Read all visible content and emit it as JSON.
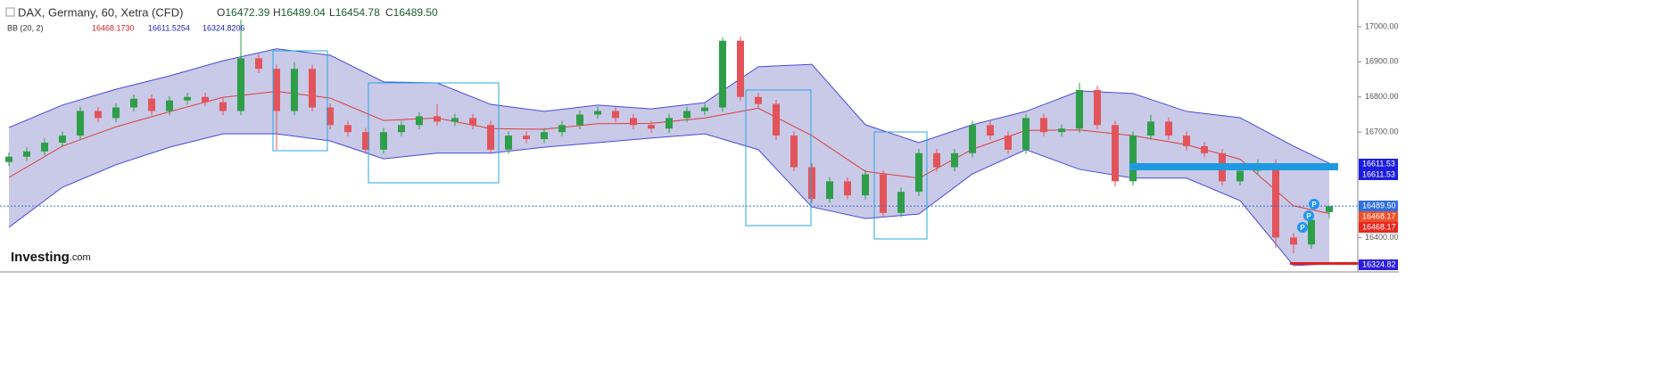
{
  "header": {
    "title": "DAX, Germany, 60, Xetra (CFD)",
    "ohlc": [
      {
        "label": "O",
        "value": "16472.39"
      },
      {
        "label": "H",
        "value": "16489.04"
      },
      {
        "label": "L",
        "value": "16454.78"
      },
      {
        "label": "C",
        "value": "16489.50"
      }
    ]
  },
  "bb_legend": {
    "label": "BB (20, 2)",
    "values": [
      "16468.1730",
      "16611.5254",
      "16324.8206"
    ]
  },
  "logo": [
    "Investing",
    ".com"
  ],
  "markers": [
    "P",
    "P",
    "P"
  ],
  "chart_data": {
    "type": "candlestick",
    "up_color": "#2e9e48",
    "down_color": "#e2545a",
    "open": [
      16615,
      16630,
      16645,
      16670,
      16690,
      16760,
      16740,
      16770,
      16795,
      16760,
      16790,
      16800,
      16785,
      16760,
      16910,
      16880,
      16760,
      16880,
      16770,
      16720,
      16700,
      16650,
      16700,
      16720,
      16745,
      16730,
      16740,
      16720,
      16650,
      16690,
      16680,
      16700,
      16720,
      16750,
      16760,
      16740,
      16720,
      16710,
      16740,
      16760,
      16770,
      16960,
      16800,
      16780,
      16690,
      16600,
      16510,
      16560,
      16520,
      16580,
      16470,
      16530,
      16640,
      16600,
      16640,
      16720,
      16690,
      16650,
      16740,
      16700,
      16710,
      16820,
      16720,
      16560,
      16690,
      16730,
      16690,
      16660,
      16640,
      16560,
      16590,
      16610,
      16400,
      16380,
      16472.39
    ],
    "high": [
      16642,
      16657,
      16682,
      16702,
      16772,
      16772,
      16782,
      16807,
      16807,
      16802,
      16812,
      16812,
      16797,
      17020,
      16922,
      16892,
      16900,
      16892,
      16782,
      16732,
      16712,
      16712,
      16732,
      16757,
      16780,
      16752,
      16752,
      16732,
      16702,
      16702,
      16712,
      16732,
      16762,
      16772,
      16772,
      16752,
      16732,
      16752,
      16772,
      16782,
      16970,
      16972,
      16812,
      16792,
      16702,
      16612,
      16572,
      16572,
      16592,
      16592,
      16542,
      16652,
      16652,
      16652,
      16732,
      16732,
      16702,
      16752,
      16752,
      16722,
      16840,
      16832,
      16732,
      16702,
      16750,
      16742,
      16702,
      16672,
      16652,
      16602,
      16622,
      16622,
      16412,
      16462,
      16489.04
    ],
    "low": [
      16603,
      16618,
      16633,
      16658,
      16678,
      16728,
      16728,
      16758,
      16748,
      16748,
      16778,
      16773,
      16748,
      16748,
      16868,
      16650,
      16748,
      16758,
      16708,
      16688,
      16638,
      16638,
      16688,
      16708,
      16718,
      16718,
      16708,
      16638,
      16638,
      16668,
      16668,
      16688,
      16708,
      16738,
      16728,
      16708,
      16698,
      16698,
      16728,
      16748,
      16758,
      16788,
      16768,
      16678,
      16588,
      16498,
      16498,
      16508,
      16508,
      16458,
      16458,
      16518,
      16588,
      16588,
      16628,
      16678,
      16638,
      16638,
      16688,
      16688,
      16698,
      16708,
      16545,
      16548,
      16678,
      16678,
      16648,
      16628,
      16548,
      16548,
      16578,
      16370,
      16355,
      16368,
      16454.78
    ],
    "close": [
      16630,
      16645,
      16670,
      16690,
      16760,
      16740,
      16770,
      16795,
      16760,
      16790,
      16800,
      16785,
      16760,
      16910,
      16880,
      16760,
      16880,
      16770,
      16720,
      16700,
      16650,
      16700,
      16720,
      16745,
      16730,
      16740,
      16720,
      16650,
      16690,
      16680,
      16700,
      16720,
      16750,
      16760,
      16740,
      16720,
      16710,
      16740,
      16760,
      16770,
      16960,
      16800,
      16780,
      16690,
      16600,
      16510,
      16560,
      16520,
      16580,
      16470,
      16530,
      16640,
      16600,
      16640,
      16720,
      16690,
      16650,
      16740,
      16700,
      16710,
      16820,
      16720,
      16560,
      16690,
      16730,
      16690,
      16660,
      16640,
      16560,
      16590,
      16610,
      16400,
      16380,
      16450,
      16489.5
    ],
    "bands": {
      "x": [
        0,
        3,
        6,
        9,
        12,
        15,
        18,
        21,
        24,
        27,
        30,
        33,
        36,
        39,
        42,
        45,
        48,
        51,
        54,
        57,
        60,
        63,
        66,
        69,
        72,
        74
      ],
      "upper": [
        16713,
        16777,
        16822,
        16860,
        16903,
        16937,
        16919,
        16843,
        16840,
        16779,
        16759,
        16777,
        16766,
        16784,
        16886,
        16893,
        16721,
        16670,
        16721,
        16759,
        16817,
        16810,
        16759,
        16741,
        16660,
        16611.53
      ],
      "middle": [
        16571,
        16660,
        16715,
        16758,
        16799,
        16816,
        16797,
        16733,
        16740,
        16710,
        16708,
        16724,
        16725,
        16740,
        16768,
        16690,
        16588,
        16569,
        16651,
        16705,
        16706,
        16690,
        16664,
        16623,
        16490,
        16468.17
      ],
      "lower": [
        16429,
        16543,
        16607,
        16657,
        16695,
        16695,
        16675,
        16624,
        16640,
        16640,
        16657,
        16670,
        16683,
        16695,
        16650,
        16487,
        16454,
        16467,
        16581,
        16650,
        16594,
        16569,
        16569,
        16505,
        16320,
        16324.82
      ],
      "upper_color": "#4a4ad8",
      "middle_color": "#d9403a",
      "fill": "#c9c9e8"
    },
    "ylim": [
      16302,
      17076
    ],
    "yticks": [
      {
        "value": 17000,
        "label": "17000.00"
      },
      {
        "value": 16900,
        "label": "16900.00"
      },
      {
        "value": 16800,
        "label": "16800.00"
      },
      {
        "value": 16700,
        "label": "16700.00"
      },
      {
        "value": 16400,
        "label": "16400.00"
      }
    ],
    "price_tags": [
      {
        "label": "16611.53",
        "color": "#1d1de0"
      },
      {
        "label": "16611.53",
        "color": "#1d1de0"
      },
      {
        "label": "16489.50",
        "color": "#2f6fe0"
      },
      {
        "label": "16468.17",
        "color": "#f0502a"
      },
      {
        "label": "16468.17",
        "color": "#e8281e"
      },
      {
        "label": "16324.82",
        "color": "#2a1ee0"
      }
    ]
  }
}
